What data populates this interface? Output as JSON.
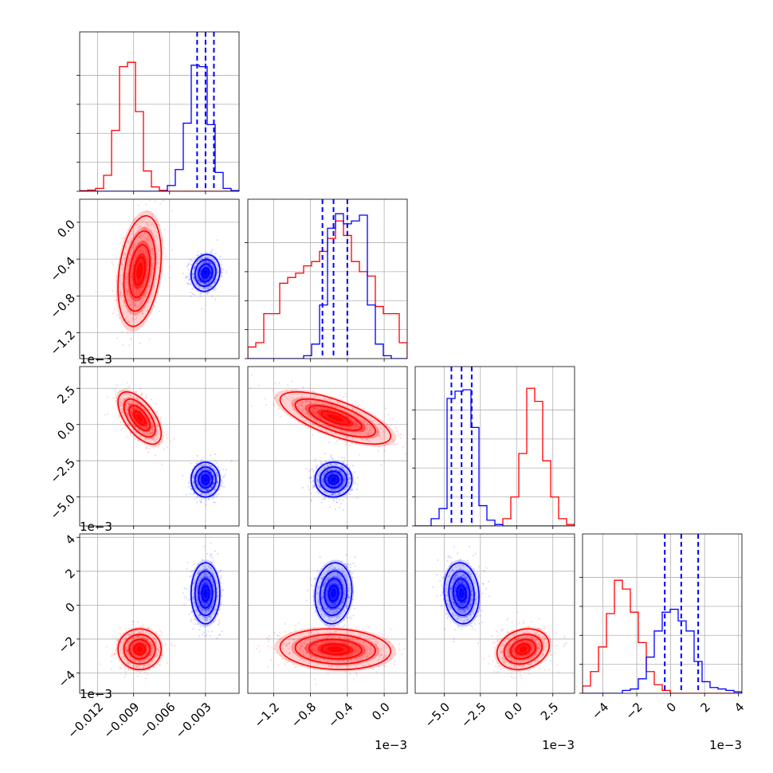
{
  "chart_data": {
    "type": "corner",
    "params": [
      {
        "range": [
          -0.0135,
          -0.0002
        ],
        "ticks": [
          -0.012,
          -0.009,
          -0.006,
          -0.003
        ],
        "ticklabels": [
          "−0.012",
          "−0.009",
          "−0.006",
          "−0.003"
        ],
        "offset": ""
      },
      {
        "range": [
          -1.48,
          0.25
        ],
        "ticks": [
          -1.2,
          -0.8,
          -0.4,
          0.0
        ],
        "ticklabels": [
          "−1.2",
          "−0.8",
          "−0.4",
          "0.0"
        ],
        "offset": "1e−3"
      },
      {
        "range": [
          -7.0,
          4.0
        ],
        "ticks": [
          -5.0,
          -2.5,
          0.0,
          2.5
        ],
        "ticklabels": [
          "−5.0",
          "−2.5",
          "0.0",
          "2.5"
        ],
        "offset": "1e−3"
      },
      {
        "range": [
          -5.2,
          4.2
        ],
        "ticks": [
          -4,
          -2,
          0,
          2,
          4
        ],
        "ticklabels": [
          "−4",
          "−2",
          "0",
          "2",
          "4"
        ],
        "offset": "1e−3"
      }
    ],
    "samples": [
      {
        "name": "red",
        "color": "#ff0000",
        "mean": [
          -0.0085,
          -0.53,
          0.45,
          -2.6
        ],
        "std": [
          0.0009,
          0.3,
          0.9,
          0.6
        ],
        "corr": [
          [
            0,
            1,
            0.3
          ],
          [
            0,
            2,
            -0.6
          ],
          [
            1,
            2,
            -0.7
          ],
          [
            1,
            3,
            -0.1
          ],
          [
            2,
            3,
            0.2
          ]
        ],
        "hist": [
          [
            0.004,
            0.008,
            0.02,
            0.11,
            0.42,
            0.86,
            0.89,
            0.55,
            0.14,
            0.03,
            0.006,
            0,
            0,
            0,
            0,
            0,
            0,
            0,
            0,
            0
          ],
          [
            0.08,
            0.11,
            0.31,
            0.31,
            0.52,
            0.56,
            0.59,
            0.64,
            0.67,
            0.74,
            0.83,
            0.95,
            0.85,
            0.67,
            0.6,
            0.57,
            0.36,
            0.31,
            0.31,
            0.11
          ],
          [
            0,
            0,
            0,
            0,
            0,
            0,
            0,
            0,
            0,
            0,
            0.01,
            0.05,
            0.2,
            0.5,
            0.95,
            0.86,
            0.45,
            0.2,
            0.05,
            0.01
          ],
          [
            0.05,
            0.15,
            0.32,
            0.55,
            0.78,
            0.72,
            0.56,
            0.35,
            0.15,
            0.06,
            0.02,
            0,
            0,
            0,
            0,
            0,
            0,
            0,
            0,
            0
          ]
        ]
      },
      {
        "name": "blue",
        "color": "#0000ff",
        "mean": [
          -0.003,
          -0.55,
          -3.8,
          0.7
        ],
        "std": [
          0.0006,
          0.1,
          0.6,
          0.9
        ],
        "corr": [
          [
            0,
            1,
            0.1
          ],
          [
            0,
            2,
            0.0
          ],
          [
            1,
            2,
            0.0
          ],
          [
            1,
            3,
            0.1
          ],
          [
            2,
            3,
            -0.1
          ]
        ],
        "hist": [
          [
            0,
            0,
            0,
            0,
            0,
            0,
            0,
            0,
            0,
            0,
            0,
            0.04,
            0.15,
            0.47,
            0.87,
            0.86,
            0.46,
            0.13,
            0.02,
            0.005
          ],
          [
            0,
            0,
            0,
            0,
            0,
            0,
            0,
            0.02,
            0.1,
            0.37,
            0.9,
            1.0,
            0.93,
            0.95,
            0.99,
            0.37,
            0.1,
            0.02,
            0,
            0
          ],
          [
            0,
            0,
            0.05,
            0.12,
            0.88,
            0.93,
            0.94,
            0.68,
            0.14,
            0.04,
            0.01,
            0,
            0,
            0,
            0,
            0,
            0,
            0,
            0,
            0
          ],
          [
            0,
            0,
            0,
            0,
            0,
            0.02,
            0.03,
            0.1,
            0.25,
            0.43,
            0.56,
            0.58,
            0.5,
            0.43,
            0.22,
            0.08,
            0.04,
            0.03,
            0.02,
            0.01
          ]
        ]
      }
    ],
    "quantile_lines": {
      "color": "#0000ff",
      "values": [
        [
          -0.0037,
          -0.003,
          -0.0023
        ],
        [
          -0.67,
          -0.55,
          -0.4
        ],
        [
          -4.5,
          -3.8,
          -3.1
        ],
        [
          -0.35,
          0.62,
          1.62
        ]
      ]
    }
  }
}
